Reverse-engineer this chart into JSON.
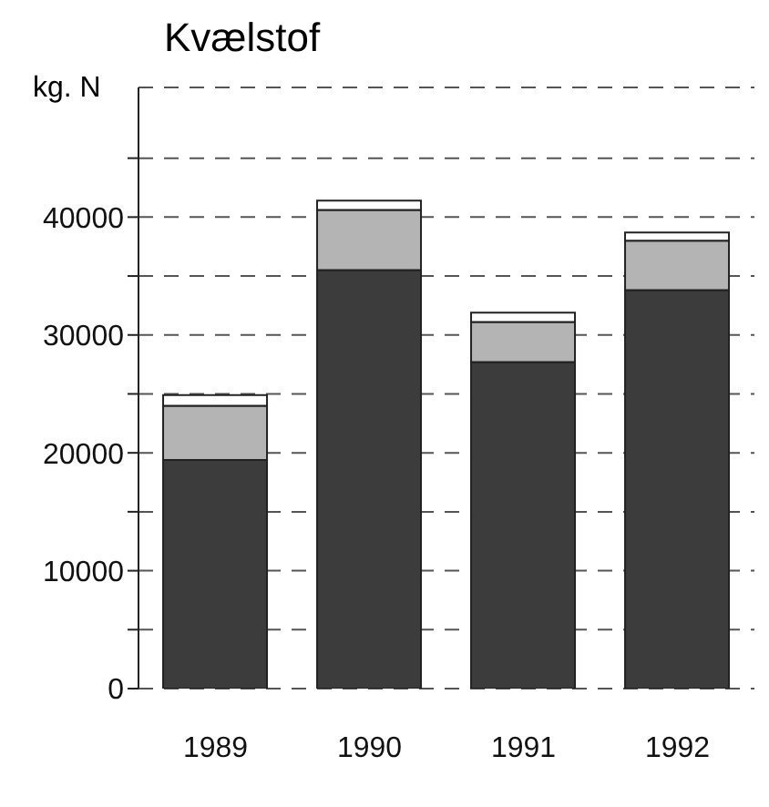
{
  "chart_data": {
    "type": "bar",
    "title": "Kvælstof",
    "ylabel": "kg. N",
    "categories": [
      "1989",
      "1990",
      "1991",
      "1992"
    ],
    "stacked": true,
    "series": [
      {
        "color": "#3c3c3c",
        "values": [
          19400,
          35500,
          27700,
          33800
        ]
      },
      {
        "color": "#b4b4b4",
        "values": [
          4600,
          5100,
          3400,
          4200
        ]
      },
      {
        "color": "#ffffff",
        "values": [
          900,
          800,
          800,
          700
        ]
      }
    ],
    "ylim": [
      0,
      51000
    ],
    "yticks": [
      0,
      {
        "value": 5000,
        "label": null
      },
      10000,
      {
        "value": 15000,
        "label": null
      },
      20000,
      {
        "value": 25000,
        "label": null
      },
      30000,
      {
        "value": 35000,
        "label": null
      },
      40000,
      {
        "value": 45000,
        "label": null
      }
    ],
    "grid": "y",
    "line_style": "dashed",
    "legend": false
  }
}
